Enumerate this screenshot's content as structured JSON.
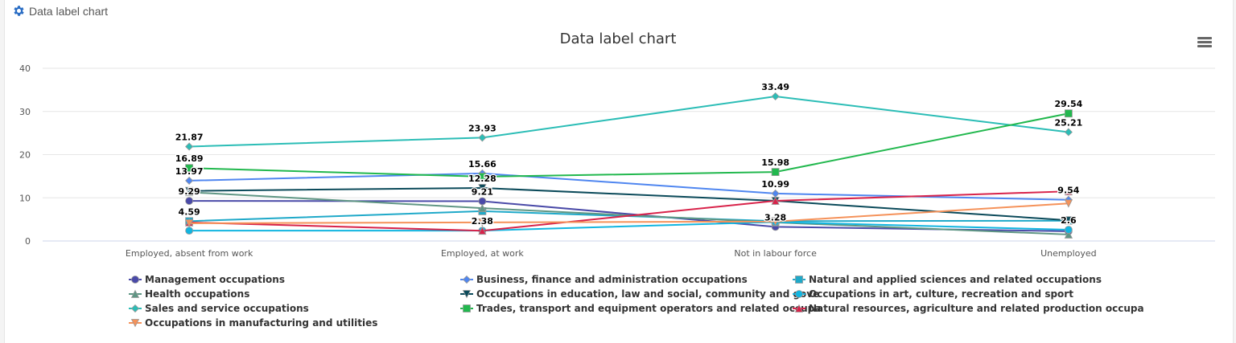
{
  "header": {
    "title": "Data label chart",
    "icon": "gear-icon"
  },
  "chart_data": {
    "type": "line",
    "title": "Data label chart",
    "categories": [
      "Employed, absent from work",
      "Employed, at work",
      "Not in labour force",
      "Unemployed"
    ],
    "ylim": [
      0,
      40
    ],
    "yticks": [
      0,
      10,
      20,
      30,
      40
    ],
    "grid": true,
    "legend": "bottom",
    "series": [
      {
        "name": "Management occupations",
        "color": "#4a4aa8",
        "marker": "circle",
        "values": [
          9.29,
          9.21,
          3.28,
          2.26
        ],
        "labeled": [
          true,
          true,
          true,
          false
        ]
      },
      {
        "name": "Business, finance and administration occupations",
        "color": "#4f86f0",
        "marker": "diamond",
        "values": [
          13.97,
          15.66,
          10.99,
          9.54
        ],
        "labeled": [
          true,
          true,
          true,
          true
        ]
      },
      {
        "name": "Natural and applied sciences and related occupations",
        "color": "#1fa9c9",
        "marker": "square",
        "values": [
          4.59,
          6.9,
          4.6,
          4.7
        ],
        "labeled": [
          true,
          false,
          false,
          false
        ]
      },
      {
        "name": "Health occupations",
        "color": "#5f9684",
        "marker": "triangle",
        "values": [
          11.3,
          7.6,
          4.3,
          1.5
        ],
        "labeled": [
          false,
          false,
          false,
          false
        ]
      },
      {
        "name": "Occupations in education, law and social, community and gove",
        "color": "#0b4a5a",
        "marker": "triangle-down",
        "values": [
          11.6,
          12.28,
          9.3,
          4.8
        ],
        "labeled": [
          false,
          true,
          false,
          false
        ]
      },
      {
        "name": "Occupations in art, culture, recreation and sport",
        "color": "#12b5e0",
        "marker": "circle",
        "values": [
          2.4,
          2.4,
          4.4,
          2.6
        ],
        "labeled": [
          false,
          false,
          false,
          true
        ]
      },
      {
        "name": "Sales and service occupations",
        "color": "#2bbdb6",
        "marker": "diamond",
        "values": [
          21.87,
          23.93,
          33.49,
          25.21
        ],
        "labeled": [
          true,
          true,
          true,
          true
        ]
      },
      {
        "name": "Trades, transport and equipment operators and related occupa",
        "color": "#22b84e",
        "marker": "square",
        "values": [
          16.89,
          14.9,
          15.98,
          29.54
        ],
        "labeled": [
          true,
          false,
          true,
          true
        ]
      },
      {
        "name": "Natural resources, agriculture and related production occupa",
        "color": "#d8234a",
        "marker": "triangle",
        "values": [
          4.3,
          2.38,
          9.3,
          11.5
        ],
        "labeled": [
          false,
          true,
          false,
          false
        ]
      },
      {
        "name": "Occupations in manufacturing and utilities",
        "color": "#f5925a",
        "marker": "triangle-down",
        "values": [
          4.1,
          4.3,
          4.5,
          8.7
        ],
        "labeled": [
          false,
          false,
          false,
          false
        ]
      }
    ]
  }
}
